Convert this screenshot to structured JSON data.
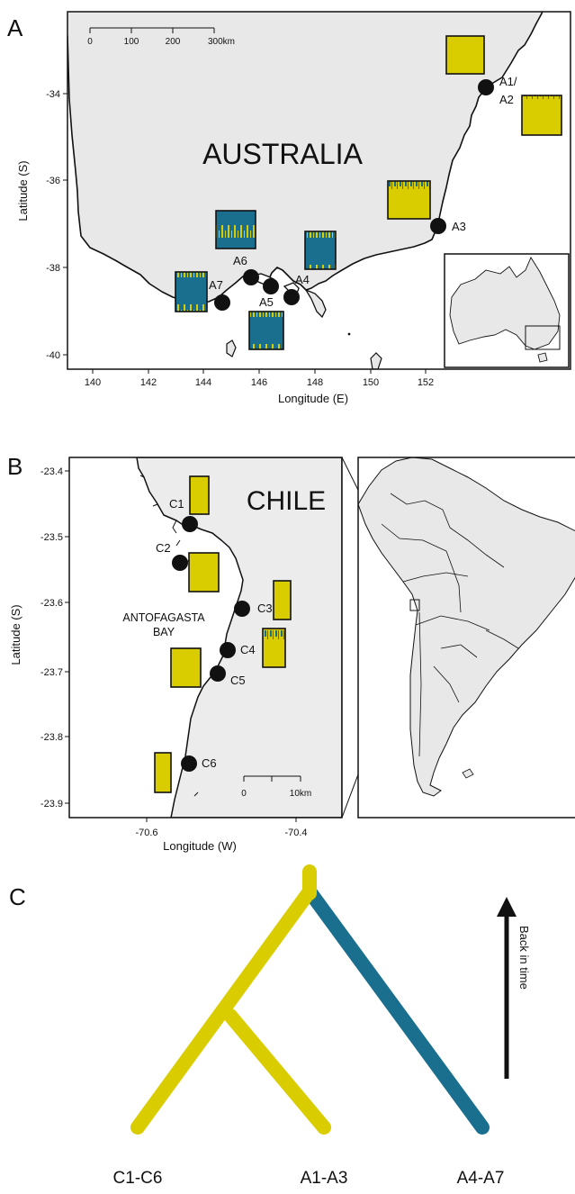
{
  "colors": {
    "yellow": "#d9cd00",
    "blue": "#1a6f8f",
    "land": "#e8e8e8",
    "black": "#111111"
  },
  "panel_a": {
    "letter": "A",
    "country_label": "AUSTRALIA",
    "xlabel": "Longitude (E)",
    "ylabel": "Latitude (S)",
    "xticks": [
      "140",
      "142",
      "144",
      "146",
      "148",
      "150",
      "152"
    ],
    "yticks": [
      "-34",
      "-36",
      "-38",
      "-40"
    ],
    "scale_ticks": [
      "0",
      "100",
      "200",
      "300km"
    ],
    "sites": [
      {
        "id": "A1/",
        "id2": "A2",
        "yellow_share": 0.85
      },
      {
        "id": "A3",
        "yellow_share": 0.9
      },
      {
        "id": "A4",
        "yellow_share": 0.1
      },
      {
        "id": "A5",
        "yellow_share": 0.2
      },
      {
        "id": "A6",
        "yellow_share": 0.15
      },
      {
        "id": "A7",
        "yellow_share": 0.15
      }
    ]
  },
  "panel_b": {
    "letter": "B",
    "country_label": "CHILE",
    "bay_label_1": "ANTOFAGASTA",
    "bay_label_2": "BAY",
    "xlabel": "Longitude (W)",
    "ylabel": "Latitude (S)",
    "xticks": [
      "-70.6",
      "-70.4"
    ],
    "yticks": [
      "-23.4",
      "-23.5",
      "-23.6",
      "-23.7",
      "-23.8",
      "-23.9"
    ],
    "scale_ticks": [
      "0",
      "10km"
    ],
    "sites": [
      {
        "id": "C1",
        "yellow_share": 0.9
      },
      {
        "id": "C2",
        "yellow_share": 0.85
      },
      {
        "id": "C3",
        "yellow_share": 0.9
      },
      {
        "id": "C4",
        "yellow_share": 0.9
      },
      {
        "id": "C5",
        "yellow_share": 0.85
      },
      {
        "id": "C6",
        "yellow_share": 0.95
      }
    ]
  },
  "panel_c": {
    "letter": "C",
    "arrow_label": "Back in time",
    "tips": [
      "C1-C6",
      "A1-A3",
      "A4-A7"
    ]
  }
}
